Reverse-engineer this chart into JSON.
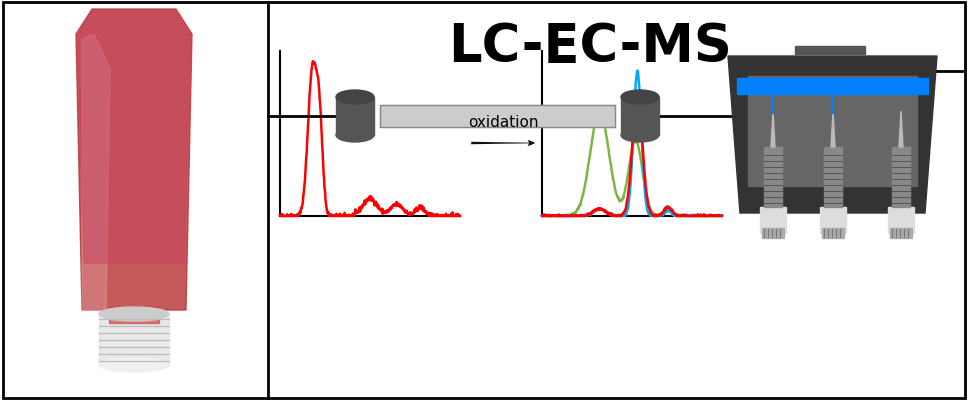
{
  "title": "LC-EC-MS",
  "title_fontsize": 38,
  "title_fontweight": "bold",
  "bg_color": "#ffffff",
  "border_color": "#000000",
  "oxidation_label": "oxidation",
  "arrow_color": "#111111",
  "chromatogram1_color": "#ff0000",
  "chromatogram2_colors": [
    "#7ab648",
    "#00aaff",
    "#ff0000"
  ],
  "axes_color": "#000000",
  "column_color": "#555555",
  "ms_dark": "#333333",
  "ms_blue": "#0080ff"
}
